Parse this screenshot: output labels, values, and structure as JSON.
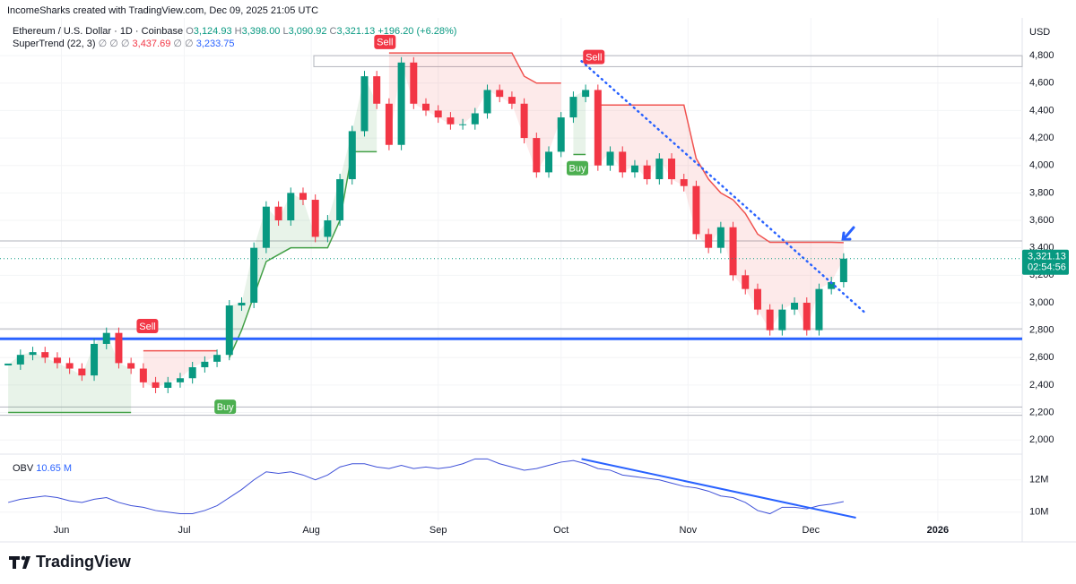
{
  "chart_data": {
    "type": "candlestick",
    "watermark": "IncomeSharks created with TradingView.com, Dec 09, 2025 21:05 UTC",
    "symbol": "Ethereum / U.S. Dollar · 1D · Coinbase",
    "ohlc_legend": {
      "o_label": "O",
      "o": "3,124.93",
      "h_label": "H",
      "h": "3,398.00",
      "l_label": "L",
      "l": "3,090.92",
      "c_label": "C",
      "c": "3,321.13",
      "change": "+196.20 (+6.28%)"
    },
    "supertrend_legend": {
      "name": "SuperTrend (22, 3)",
      "blank1": "∅ ∅ ∅",
      "v1": "3,437.69",
      "blank2": "∅ ∅",
      "v2": "3,233.75"
    },
    "currency": "USD",
    "last_price_label": "3,321.13",
    "countdown": "02:54:56",
    "logo": "TradingView",
    "x": [
      -13,
      -10,
      -7,
      -4,
      -1,
      2,
      5,
      8,
      11,
      14,
      17,
      20,
      23,
      26,
      29,
      32,
      35,
      38,
      41,
      44,
      47,
      50,
      53,
      56,
      59,
      62,
      65,
      68,
      71,
      74,
      77,
      80,
      83,
      86,
      89,
      92,
      95,
      98,
      101,
      104,
      107,
      110,
      113,
      116,
      119,
      122,
      125,
      128,
      131,
      134,
      137,
      140,
      143,
      146,
      149,
      152,
      155,
      158,
      161,
      164,
      167,
      170,
      173,
      176,
      179,
      182,
      185,
      188,
      191
    ],
    "close": [
      2550,
      2620,
      2640,
      2600,
      2560,
      2520,
      2470,
      2700,
      2780,
      2560,
      2520,
      2420,
      2380,
      2420,
      2450,
      2530,
      2570,
      2620,
      2980,
      3000,
      3400,
      3700,
      3600,
      3800,
      3750,
      3480,
      3600,
      3900,
      4250,
      4650,
      4450,
      4150,
      4750,
      4450,
      4400,
      4350,
      4300,
      4300,
      4380,
      4550,
      4500,
      4450,
      4200,
      3950,
      4100,
      4350,
      4500,
      4550,
      4000,
      4100,
      3950,
      4000,
      3900,
      4050,
      3900,
      3850,
      3500,
      3400,
      3550,
      3200,
      3100,
      2950,
      2800,
      2950,
      3000,
      2800,
      3100,
      3150,
      3321.13
    ],
    "up_color": "#089981",
    "down_color": "#f23645",
    "supertrend": {
      "up_color": "#43a047",
      "down_color": "#f05350",
      "up": [
        2200,
        2200,
        2200,
        2200,
        2200,
        2200,
        2200,
        2200,
        2200,
        2200,
        2200,
        null,
        null,
        null,
        null,
        null,
        null,
        null,
        2600,
        2800,
        3050,
        3300,
        3350,
        3400,
        3400,
        3400,
        3400,
        3600,
        4100,
        4100,
        4100,
        null,
        null,
        null,
        null,
        null,
        null,
        null,
        null,
        null,
        null,
        null,
        null,
        null,
        null,
        null,
        4080,
        4080,
        null,
        null,
        null,
        null,
        null,
        null,
        null,
        null,
        null,
        null,
        null,
        null,
        null,
        null,
        null,
        null,
        null,
        null,
        null,
        null,
        null
      ],
      "down": [
        null,
        null,
        null,
        null,
        null,
        null,
        null,
        null,
        null,
        null,
        null,
        2650,
        2650,
        2650,
        2650,
        2650,
        2650,
        2650,
        null,
        null,
        null,
        null,
        null,
        null,
        null,
        null,
        null,
        null,
        null,
        null,
        null,
        4820,
        4820,
        4820,
        4820,
        4820,
        4820,
        4820,
        4820,
        4820,
        4820,
        4820,
        4650,
        4600,
        4600,
        4600,
        null,
        null,
        4440,
        4440,
        4440,
        4440,
        4440,
        4440,
        4440,
        4440,
        4050,
        3900,
        3800,
        3750,
        3650,
        3500,
        3440,
        3440,
        3440,
        3440,
        3440,
        3440,
        3437.69
      ]
    },
    "signals": [
      {
        "label": "Sell",
        "x": 21,
        "y": 2830,
        "color": "#f23645"
      },
      {
        "label": "Buy",
        "x": 40,
        "y": 2242,
        "color": "#4caf50"
      },
      {
        "label": "Sell",
        "x": 79,
        "y": 4900,
        "color": "#f23645"
      },
      {
        "label": "Buy",
        "x": 126,
        "y": 3980,
        "color": "#4caf50"
      },
      {
        "label": "Sell",
        "x": 130,
        "y": 4790,
        "color": "#f23645"
      }
    ],
    "support_line": 2737,
    "support_color": "#2962ff",
    "range_box": [
      4720,
      4800
    ],
    "levels": [
      3450,
      2810,
      2240,
      2180
    ],
    "trendline": {
      "x": [
        127,
        196
      ],
      "y": [
        4760,
        2933
      ]
    },
    "xlim": [
      -15,
      234.6
    ],
    "xticks": [
      {
        "value": 0,
        "label": "Jun"
      },
      {
        "value": 30,
        "label": "Jul"
      },
      {
        "value": 61,
        "label": "Aug"
      },
      {
        "value": 92,
        "label": "Sep"
      },
      {
        "value": 122,
        "label": "Oct"
      },
      {
        "value": 153,
        "label": "Nov"
      },
      {
        "value": 183,
        "label": "Dec"
      },
      {
        "value": 214,
        "label": "2026"
      }
    ],
    "ylim": [
      1910,
      5075
    ],
    "yticks": [
      {
        "value": 2000,
        "label": "2,000"
      },
      {
        "value": 2200,
        "label": "2,200"
      },
      {
        "value": 2400,
        "label": "2,400"
      },
      {
        "value": 2600,
        "label": "2,600"
      },
      {
        "value": 2800,
        "label": "2,800"
      },
      {
        "value": 3000,
        "label": "3,000"
      },
      {
        "value": 3200,
        "label": "3,200"
      },
      {
        "value": 3400,
        "label": "3,400"
      },
      {
        "value": 3600,
        "label": "3,600"
      },
      {
        "value": 3800,
        "label": "3,800"
      },
      {
        "value": 4000,
        "label": "4,000"
      },
      {
        "value": 4200,
        "label": "4,200"
      },
      {
        "value": 4400,
        "label": "4,400"
      },
      {
        "value": 4600,
        "label": "4,600"
      },
      {
        "value": 4800,
        "label": "4,800"
      }
    ],
    "obv": {
      "name": "OBV",
      "last_label": "10.65 M",
      "color": "#3f51d8",
      "values": [
        10.6,
        10.8,
        10.9,
        11.0,
        10.9,
        10.7,
        10.6,
        10.8,
        10.9,
        10.6,
        10.4,
        10.3,
        10.1,
        10.0,
        9.9,
        9.9,
        10.1,
        10.4,
        10.9,
        11.4,
        12.0,
        12.5,
        12.4,
        12.5,
        12.3,
        12.0,
        12.3,
        12.8,
        13.0,
        13.0,
        12.8,
        12.7,
        12.9,
        12.7,
        12.8,
        12.7,
        12.8,
        13.0,
        13.3,
        13.3,
        13.0,
        12.8,
        12.6,
        12.7,
        12.9,
        13.1,
        13.2,
        13.0,
        12.7,
        12.6,
        12.3,
        12.2,
        12.1,
        12.0,
        11.8,
        11.6,
        11.5,
        11.3,
        11.0,
        10.9,
        10.6,
        10.1,
        9.9,
        10.3,
        10.3,
        10.2,
        10.4,
        10.5,
        10.65
      ],
      "ylim": [
        9.43,
        13.43
      ],
      "yticks": [
        {
          "value": 10,
          "label": "10M"
        },
        {
          "value": 12,
          "label": "12M"
        }
      ],
      "trendline": {
        "x": [
          127,
          194
        ],
        "y": [
          13.3,
          9.65
        ]
      }
    }
  }
}
